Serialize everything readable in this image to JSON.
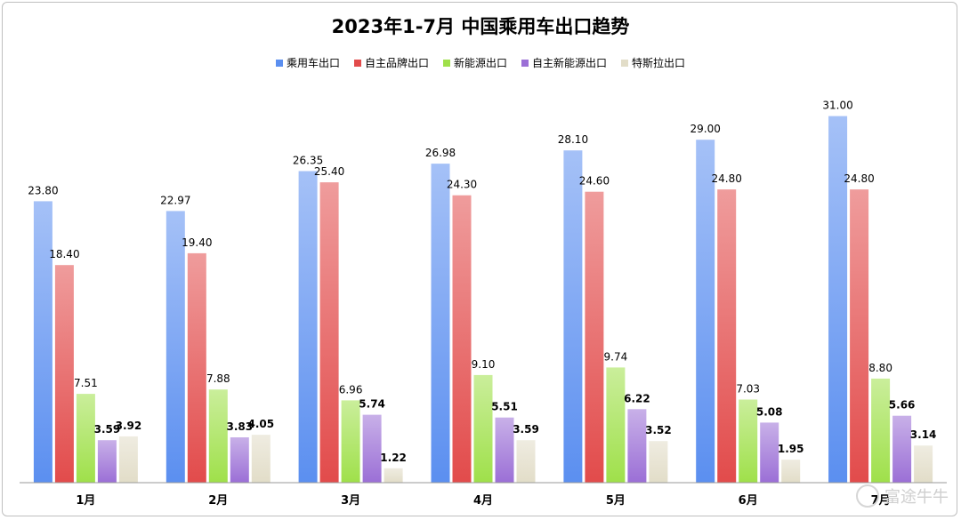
{
  "chart_data": {
    "type": "bar",
    "title": "2023年1-7月 中国乘用车出口趋势",
    "xlabel": "",
    "ylabel": "",
    "ylim": [
      0,
      33
    ],
    "grid": false,
    "legend_position": "top-center",
    "categories": [
      "1月",
      "2月",
      "3月",
      "4月",
      "5月",
      "6月",
      "7月"
    ],
    "series": [
      {
        "name": "乘用车出口",
        "color": "#5b8ff0",
        "values": [
          23.8,
          22.97,
          26.35,
          26.98,
          28.1,
          29.0,
          31.0
        ],
        "labels": [
          "23.80",
          "22.97",
          "26.35",
          "26.98",
          "28.10",
          "29.00",
          "31.00"
        ]
      },
      {
        "name": "自主品牌出口",
        "color": "#e24b4b",
        "values": [
          18.4,
          19.4,
          25.4,
          24.3,
          24.6,
          24.8,
          24.8
        ],
        "labels": [
          "18.40",
          "19.40",
          "25.40",
          "24.30",
          "24.60",
          "24.80",
          "24.80"
        ]
      },
      {
        "name": "新能源出口",
        "color": "#9fe04a",
        "values": [
          7.51,
          7.88,
          6.96,
          9.1,
          9.74,
          7.03,
          8.8
        ],
        "labels": [
          "7.51",
          "7.88",
          "6.96",
          "9.10",
          "9.74",
          "7.03",
          "8.80"
        ]
      },
      {
        "name": "自主新能源出口",
        "color": "#9b6fd6",
        "values": [
          3.59,
          3.83,
          5.74,
          5.51,
          6.22,
          5.08,
          5.66
        ],
        "labels": [
          "3.59",
          "3.83",
          "5.74",
          "5.51",
          "6.22",
          "5.08",
          "5.66"
        ]
      },
      {
        "name": "特斯拉出口",
        "color": "#e2ddc8",
        "values": [
          3.92,
          4.05,
          1.22,
          3.59,
          3.52,
          1.95,
          3.14
        ],
        "labels": [
          "3.92",
          "4.05",
          "1.22",
          "3.59",
          "3.52",
          "1.95",
          "3.14"
        ]
      }
    ]
  },
  "watermark": {
    "text": "富途牛牛"
  }
}
